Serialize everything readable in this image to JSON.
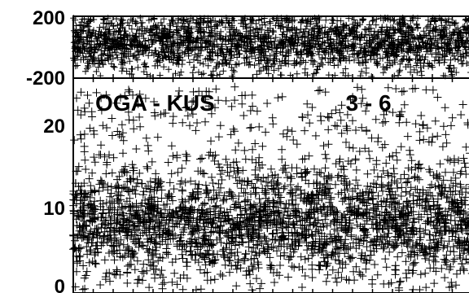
{
  "chart_data": [
    {
      "type": "scatter",
      "panel": "phase",
      "marker": "cross",
      "title": "",
      "xlabel": "",
      "ylabel": "",
      "ylim": [
        -200,
        200
      ],
      "yticks": [
        "200",
        "-200"
      ],
      "xlim": [
        0,
        1000
      ],
      "grid": false,
      "color": "#000000",
      "point_count": 2200,
      "series": [
        {
          "distribution": "phase scatter, roughly uniform across the range, densest between -120 and 170",
          "y_range": [
            -200,
            200
          ],
          "y_center": 25
        }
      ]
    },
    {
      "type": "scatter",
      "panel": "amplitude",
      "marker": "cross",
      "title": "",
      "xlabel": "",
      "ylabel": "",
      "ylim": [
        0,
        25
      ],
      "yticks": [
        "20",
        "10",
        "0"
      ],
      "xlim": [
        0,
        1000
      ],
      "grid": false,
      "color": "#000000",
      "point_count": 3400,
      "series": [
        {
          "distribution": "amplitude scatter, dense band between 2 and 14, spikes up to about 24",
          "y_range": [
            0,
            24
          ],
          "y_center": 8
        }
      ],
      "annotations": [
        {
          "text": "OGA - KUS",
          "x": 205,
          "y": 21.2
        },
        {
          "text": "3 - 6",
          "x": 740,
          "y": 21.2
        }
      ]
    }
  ]
}
